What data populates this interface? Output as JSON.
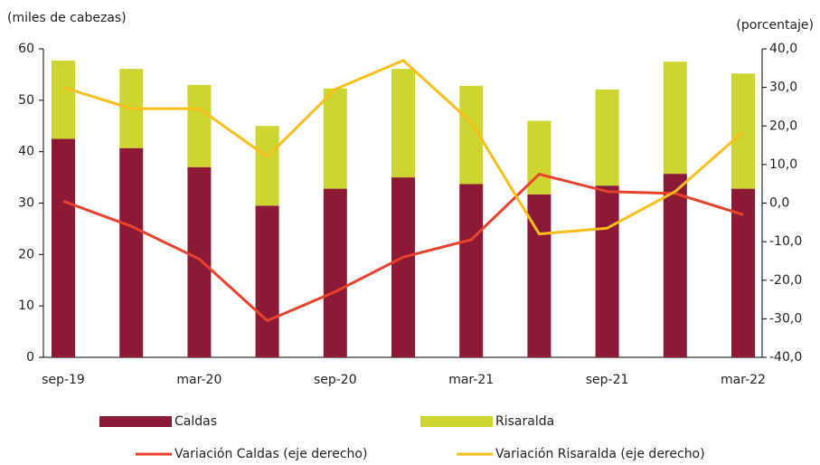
{
  "chart_data": {
    "type": "bar",
    "stacked": true,
    "y_label": "(miles de cabezas)",
    "y2_label": "(porcentaje)",
    "categories": [
      "sep-19",
      null,
      "mar-20",
      null,
      "sep-20",
      null,
      "mar-21",
      null,
      "sep-21",
      null,
      "mar-22"
    ],
    "series": [
      {
        "name": "Caldas",
        "type": "bar",
        "color": "#8c1a36",
        "values": [
          42.5,
          40.7,
          37,
          29.5,
          32.8,
          35,
          33.7,
          31.7,
          33.4,
          35.7,
          32.8
        ]
      },
      {
        "name": "Risaralda",
        "type": "bar",
        "color": "#cdd631",
        "values": [
          15.2,
          15.4,
          16,
          15.5,
          19.5,
          21.1,
          19.1,
          14.3,
          18.7,
          21.8,
          22.4
        ]
      },
      {
        "name": "Variación Caldas (eje derecho)",
        "type": "line",
        "axis": "y2",
        "color": "#e8412c",
        "values": [
          0.5,
          -6,
          -14.5,
          -30.5,
          -23,
          -14,
          -9.5,
          7.5,
          3,
          2.5,
          -3
        ]
      },
      {
        "name": "Variación Risaralda (eje derecho)",
        "type": "line",
        "axis": "y2",
        "color": "#f9be1a",
        "values": [
          30,
          24.5,
          24.5,
          12,
          29.5,
          37,
          21,
          -8,
          -6.5,
          3,
          18.5
        ]
      }
    ],
    "ylim": [
      0,
      60
    ],
    "yticks": [
      0,
      10,
      20,
      30,
      40,
      50,
      60
    ],
    "y2lim": [
      -40,
      40
    ],
    "y2ticks": [
      {
        "value": -40,
        "label": "-40,0"
      },
      {
        "value": -30,
        "label": "-30,0"
      },
      {
        "value": -20,
        "label": "-20,0"
      },
      {
        "value": -10,
        "label": "-10,0"
      },
      {
        "value": 0,
        "label": "0,0"
      },
      {
        "value": 10,
        "label": "10,0"
      },
      {
        "value": 20,
        "label": "20,0"
      },
      {
        "value": 30,
        "label": "30,0"
      },
      {
        "value": 40,
        "label": "40,0"
      }
    ]
  }
}
